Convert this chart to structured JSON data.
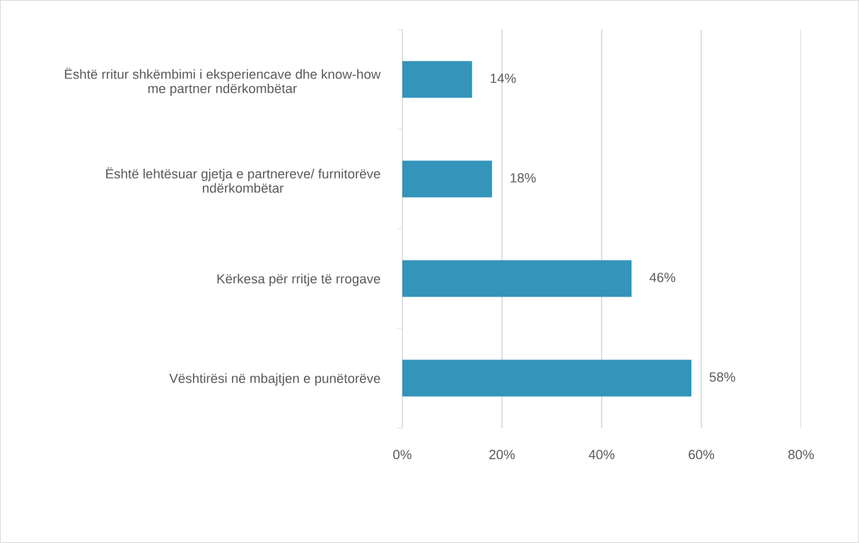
{
  "chart_data": {
    "type": "bar",
    "orientation": "horizontal",
    "categories": [
      "Është rritur shkëmbimi i eksperiencave dhe know-how\nme partner ndërkombëtar",
      "Është lehtësuar gjetja e partnereve/ furnitorëve\nndërkombëtar",
      "Kërkesa për rritje të rrogave",
      "Vështirësi në mbajtjen e punëtorëve"
    ],
    "values": [
      14,
      18,
      46,
      58
    ],
    "value_labels": [
      "14%",
      "18%",
      "46%",
      "58%"
    ],
    "color": "#3494ba",
    "xlim": [
      0,
      80
    ],
    "xticks": [
      {
        "value": 0,
        "label": "0%"
      },
      {
        "value": 20,
        "label": "20%"
      },
      {
        "value": 40,
        "label": "40%"
      },
      {
        "value": 60,
        "label": "60%"
      },
      {
        "value": 80,
        "label": "80%"
      }
    ],
    "grid": "x"
  }
}
